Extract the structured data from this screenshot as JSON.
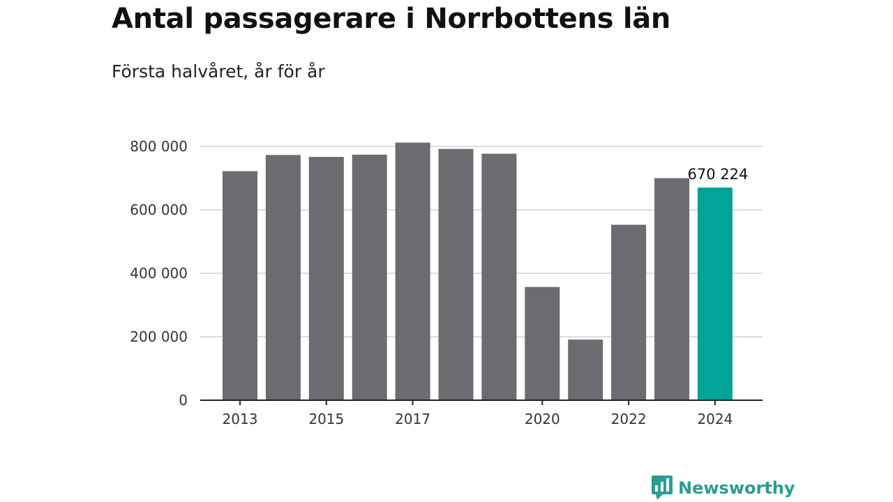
{
  "colors": {
    "bar": "#6c6b70",
    "highlight": "#00a398",
    "grid": "#dddddd",
    "axis": "#222222",
    "brand": "#2a9d93"
  },
  "chart_data": {
    "type": "bar",
    "title": "Antal passagerare i Norrbottens län",
    "subtitle": "Första halvåret, år för år",
    "xlabel": "",
    "ylabel": "",
    "categories": [
      "2013",
      "2014",
      "2015",
      "2016",
      "2017",
      "2018",
      "2019",
      "2020",
      "2021",
      "2022",
      "2023",
      "2024"
    ],
    "values": [
      722000,
      773000,
      767000,
      774000,
      812000,
      792000,
      777000,
      357000,
      191000,
      553000,
      700000,
      670224
    ],
    "highlight_index": 11,
    "ylim": [
      0,
      800000
    ],
    "yticks": [
      0,
      200000,
      400000,
      600000,
      800000
    ],
    "ytick_labels": [
      "0",
      "200 000",
      "400 000",
      "600 000",
      "800 000"
    ],
    "xtick_labels": [
      {
        "category": "2013",
        "label": "2013"
      },
      {
        "category": "2015",
        "label": "2015"
      },
      {
        "category": "2017",
        "label": "2017"
      },
      {
        "category": "2020",
        "label": "2020"
      },
      {
        "category": "2022",
        "label": "2022"
      },
      {
        "category": "2024",
        "label": "2024"
      }
    ],
    "data_labels": [
      {
        "category": "2024",
        "label": "670 224"
      }
    ],
    "grid": true,
    "legend": "none"
  },
  "brand": {
    "name": "Newsworthy",
    "icon": "newsworthy-logo-icon"
  }
}
